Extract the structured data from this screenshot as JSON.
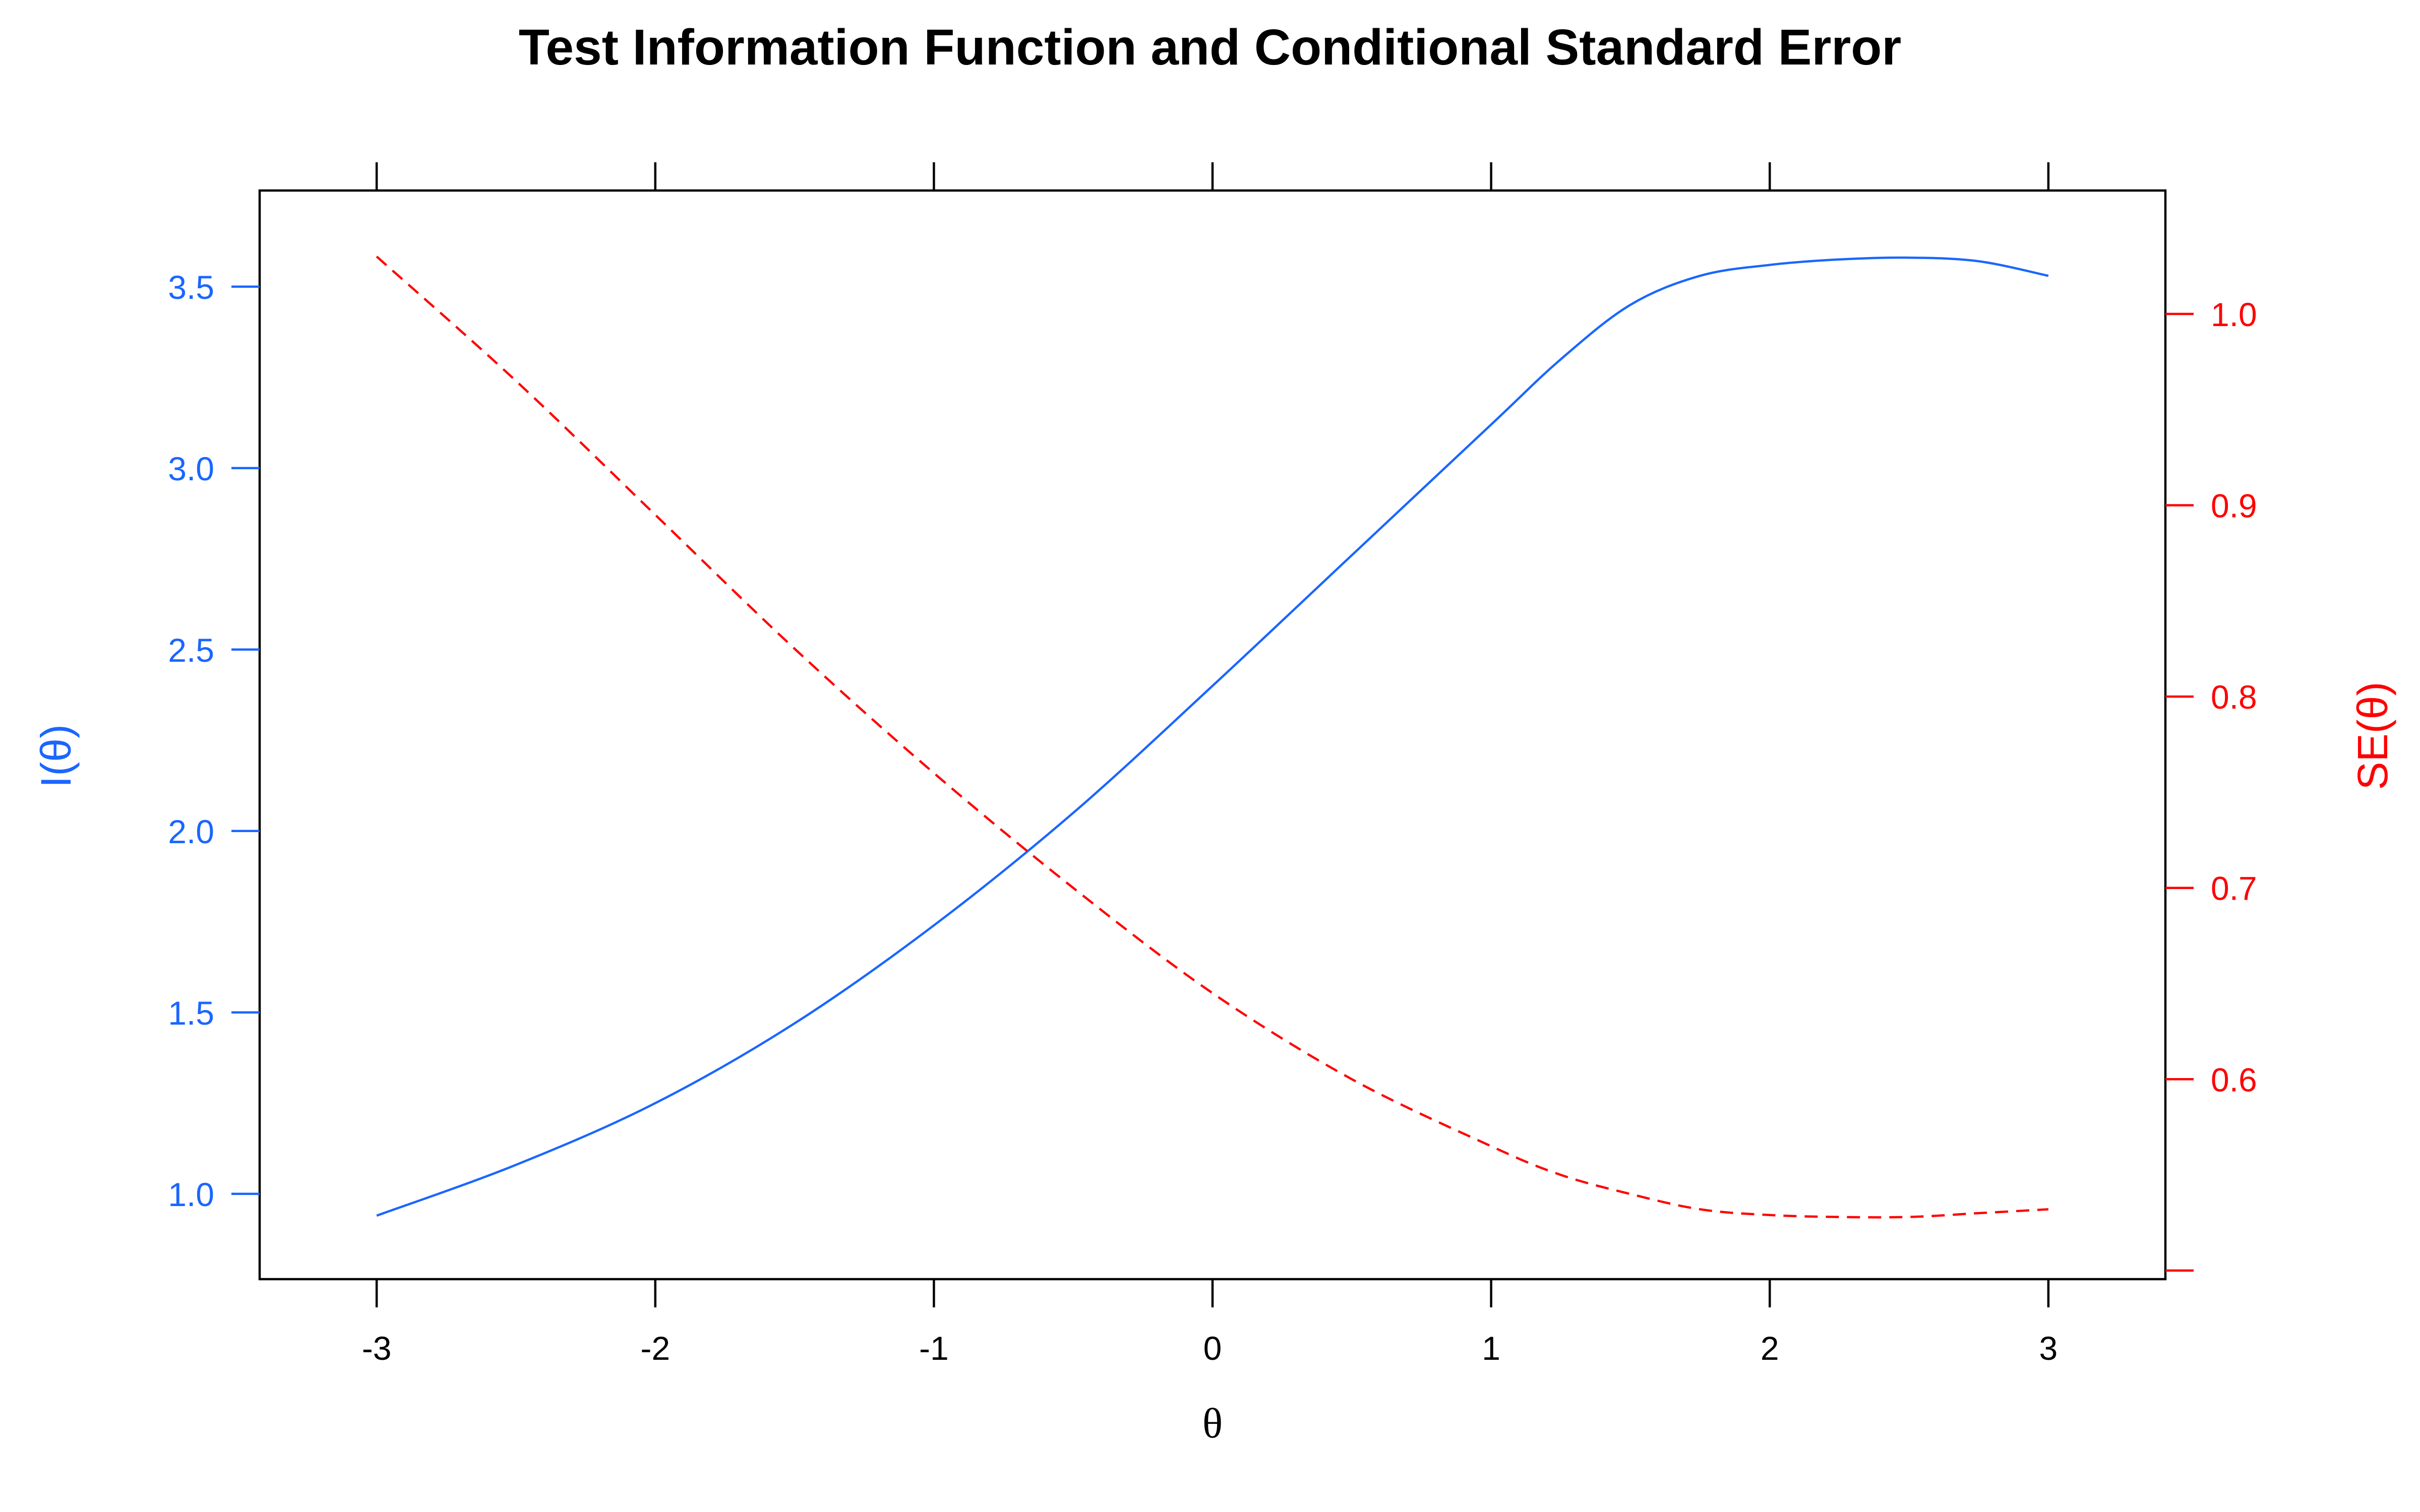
{
  "chart_data": {
    "type": "line",
    "title": "Test Information Function and Conditional Standard Error",
    "xlabel": "θ",
    "ylabel_left": "I(θ)",
    "ylabel_right": "SE(θ)",
    "xlim": [
      -3.42,
      3.42
    ],
    "x_ticks": [
      -3,
      -2,
      -1,
      0,
      1,
      2,
      3
    ],
    "x_tick_labels": [
      "-3",
      "-2",
      "-1",
      "0",
      "1",
      "2",
      "3"
    ],
    "ylim_left": [
      0.765,
      3.765
    ],
    "y_ticks_left": [
      1.0,
      1.5,
      2.0,
      2.5,
      3.0,
      3.5
    ],
    "y_tick_labels_left": [
      "1.0",
      "1.5",
      "2.0",
      "2.5",
      "3.0",
      "3.5"
    ],
    "ylim_right": [
      0.4955,
      1.0645
    ],
    "y_ticks_right": [
      0.5,
      0.6,
      0.7,
      0.8,
      0.9,
      1.0
    ],
    "y_tick_labels_right": [
      "",
      "0.6",
      "0.7",
      "0.8",
      "0.9",
      "1.0"
    ],
    "grid": false,
    "colors": {
      "information": "#1a66ff",
      "se": "#ff0000",
      "axis": "#000000"
    },
    "x": [
      -3,
      -2.5,
      -2,
      -1.5,
      -1,
      -0.5,
      0,
      0.5,
      1,
      1.25,
      1.5,
      1.75,
      2,
      2.25,
      2.5,
      2.75,
      3
    ],
    "series": [
      {
        "name": "I(θ)",
        "axis": "left",
        "style": "solid",
        "values": [
          0.94,
          1.08,
          1.25,
          1.47,
          1.74,
          2.05,
          2.4,
          2.76,
          3.12,
          3.3,
          3.45,
          3.53,
          3.56,
          3.575,
          3.58,
          3.57,
          3.53
        ]
      },
      {
        "name": "SE(θ)",
        "axis": "right",
        "style": "dashed",
        "values": [
          1.03,
          0.965,
          0.895,
          0.825,
          0.76,
          0.7,
          0.645,
          0.6,
          0.565,
          0.55,
          0.54,
          0.532,
          0.529,
          0.528,
          0.528,
          0.53,
          0.532
        ]
      }
    ]
  }
}
